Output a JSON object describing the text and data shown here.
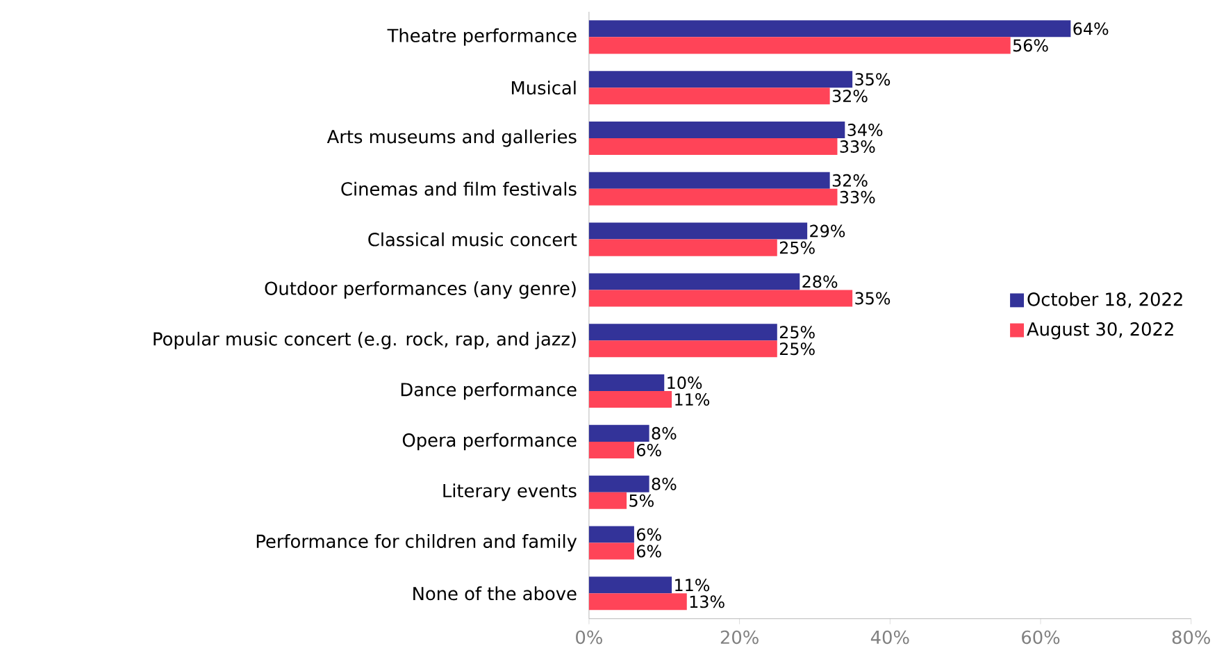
{
  "chart_data": {
    "type": "bar",
    "orientation": "horizontal",
    "categories": [
      "Theatre performance",
      "Musical",
      "Arts museums and galleries",
      "Cinemas and film festivals",
      "Classical music concert",
      "Outdoor performances (any genre)",
      "Popular music concert (e.g. rock, rap, and jazz)",
      "Dance performance",
      "Opera performance",
      "Literary events",
      "Performance for children and family",
      "None of the above"
    ],
    "series": [
      {
        "name": "October 18, 2022",
        "color": "#333399",
        "values": [
          64,
          35,
          34,
          32,
          29,
          28,
          25,
          10,
          8,
          8,
          6,
          11
        ],
        "value_labels": [
          "64%",
          "35%",
          "34%",
          "32%",
          "29%",
          "28%",
          "25%",
          "10%",
          "8%",
          "8%",
          "6%",
          "11%"
        ]
      },
      {
        "name": "August 30, 2022",
        "color": "#ff4458",
        "values": [
          56,
          32,
          33,
          33,
          25,
          35,
          25,
          11,
          6,
          5,
          6,
          13
        ],
        "value_labels": [
          "56%",
          "32%",
          "33%",
          "33%",
          "25%",
          "35%",
          "25%",
          "11%",
          "6%",
          "5%",
          "6%",
          "13%"
        ]
      }
    ],
    "xlim": [
      0,
      80
    ],
    "xticks": [
      {
        "value": 0,
        "label": "0%"
      },
      {
        "value": 20,
        "label": "20%"
      },
      {
        "value": 40,
        "label": "40%"
      },
      {
        "value": 60,
        "label": "60%"
      },
      {
        "value": 80,
        "label": "80%"
      }
    ],
    "legend": "right"
  }
}
